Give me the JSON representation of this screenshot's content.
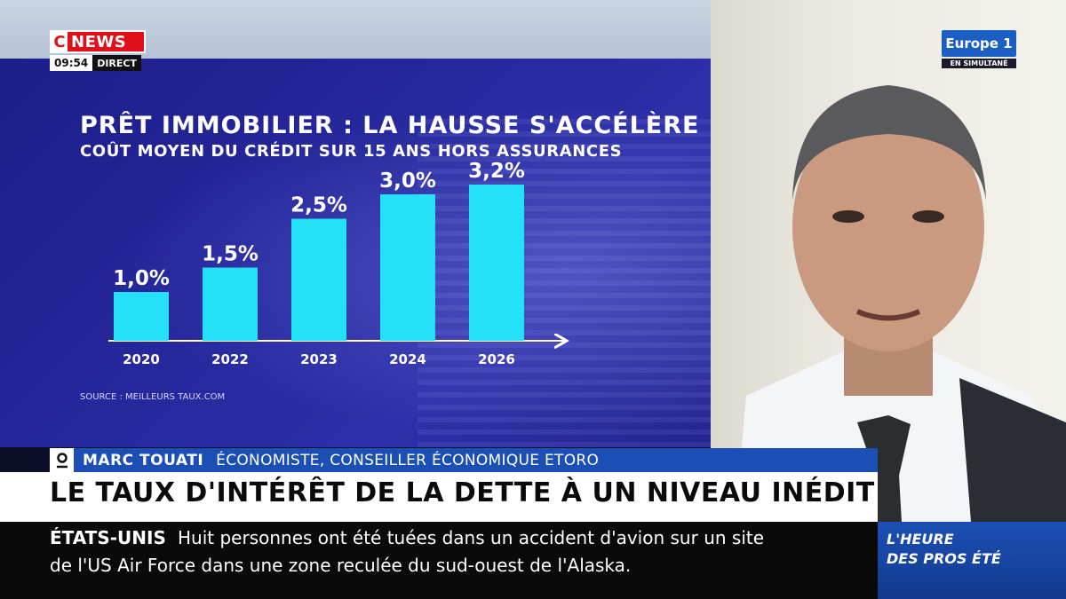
{
  "channel": {
    "logo_c": "C",
    "logo_news": "NEWS",
    "time": "09:54",
    "live_label": "DIRECT",
    "partner_logo": "Europe 1",
    "partner_sub": "EN SIMULTANÉ"
  },
  "infographic": {
    "title": "PRÊT IMMOBILIER : LA HAUSSE S'ACCÉLÈRE",
    "subtitle": "COÛT MOYEN DU CRÉDIT SUR 15 ANS HORS ASSURANCES",
    "source": "SOURCE : MEILLEURS TAUX.COM"
  },
  "chart_data": {
    "type": "bar",
    "title": "PRÊT IMMOBILIER : LA HAUSSE S'ACCÉLÈRE",
    "subtitle": "COÛT MOYEN DU CRÉDIT SUR 15 ANS HORS ASSURANCES",
    "categories": [
      "2020",
      "2022",
      "2023",
      "2024",
      "2026"
    ],
    "values": [
      1.0,
      1.5,
      2.5,
      3.0,
      3.2
    ],
    "data_labels": [
      "1,0%",
      "1,5%",
      "2,5%",
      "3,0%",
      "3,2%"
    ],
    "ylim": [
      0,
      3.6
    ],
    "grid": false,
    "bar_color": "#25e1f7"
  },
  "lower_third": {
    "guest_name": "MARC TOUATI",
    "guest_role": "ÉCONOMISTE, CONSEILLER ÉCONOMIQUE ETORO",
    "headline": "LE TAUX D'INTÉRÊT DE LA DETTE À UN NIVEAU INÉDIT"
  },
  "ticker": {
    "label": "ÉTATS-UNIS",
    "line1": "Huit personnes ont été tuées dans un accident d'avion sur un site",
    "line2": "de l'US Air Force dans une zone reculée du sud-ouest de l'Alaska."
  },
  "program": {
    "line1": "L'HEURE",
    "line2": "DES PROS ÉTÉ"
  },
  "colors": {
    "brand_red": "#e0101a",
    "bar_blue": "#1b4fb5",
    "panel_blue": "#26289e"
  }
}
